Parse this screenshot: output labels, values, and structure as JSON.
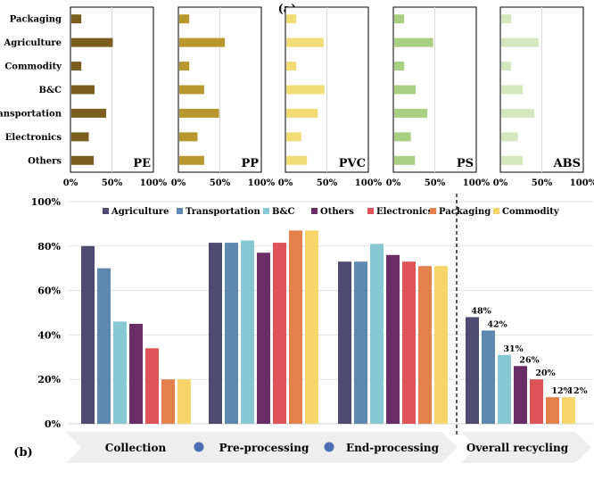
{
  "chart_data": [
    {
      "panel": "(a)",
      "type": "bar",
      "orientation": "horizontal",
      "categories": [
        "Packaging",
        "Agriculture",
        "Commodity",
        "B&C",
        "Transportation",
        "Electronics",
        "Others"
      ],
      "xticks": [
        "0%",
        "50%",
        "100%"
      ],
      "xlim": [
        0,
        100
      ],
      "series": [
        {
          "name": "PE",
          "color": "#7a5d1f",
          "values": [
            12,
            50,
            12,
            28,
            42,
            21,
            27
          ]
        },
        {
          "name": "PP",
          "color": "#b8982e",
          "values": [
            12,
            55,
            12,
            30,
            48,
            22,
            30
          ]
        },
        {
          "name": "PVC",
          "color": "#f2dc76",
          "values": [
            12,
            45,
            12,
            46,
            38,
            18,
            25
          ]
        },
        {
          "name": "PS",
          "color": "#a9cf83",
          "values": [
            12,
            47,
            12,
            26,
            40,
            20,
            25
          ]
        },
        {
          "name": "ABS",
          "color": "#d5e7be",
          "values": [
            12,
            45,
            12,
            26,
            40,
            20,
            26
          ]
        }
      ]
    },
    {
      "panel": "(b)",
      "type": "bar",
      "orientation": "vertical",
      "groups": [
        "Collection",
        "Pre-processing",
        "End-processing",
        "Overall recycling"
      ],
      "ylim": [
        0,
        100
      ],
      "yticks": [
        "0%",
        "20%",
        "40%",
        "60%",
        "80%",
        "100%"
      ],
      "series": [
        {
          "name": "Agriculture",
          "color": "#4e4a72",
          "values": [
            80,
            81.5,
            73,
            48
          ]
        },
        {
          "name": "Transportation",
          "color": "#5e88b0",
          "values": [
            70,
            81.5,
            73,
            42
          ]
        },
        {
          "name": "B&C",
          "color": "#87c9d3",
          "values": [
            46,
            82.5,
            81,
            31
          ]
        },
        {
          "name": "Others",
          "color": "#6b2d66",
          "values": [
            45,
            77,
            76,
            26
          ]
        },
        {
          "name": "Electronics",
          "color": "#de5357",
          "values": [
            34,
            81.5,
            73,
            20
          ]
        },
        {
          "name": "Packaging",
          "color": "#e3804c",
          "values": [
            20,
            87,
            71,
            12
          ]
        },
        {
          "name": "Commodity",
          "color": "#f7d56a",
          "values": [
            20,
            87,
            71,
            12
          ]
        }
      ],
      "overall_labels": [
        "48%",
        "42%",
        "31%",
        "26%",
        "20%",
        "12%",
        "12%"
      ]
    }
  ]
}
